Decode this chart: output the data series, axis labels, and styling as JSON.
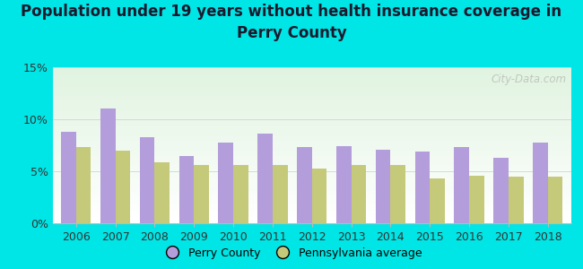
{
  "title_line1": "Population under 19 years without health insurance coverage in",
  "title_line2": "Perry County",
  "years": [
    2006,
    2007,
    2008,
    2009,
    2010,
    2011,
    2012,
    2013,
    2014,
    2015,
    2016,
    2017,
    2018
  ],
  "perry_county": [
    8.8,
    11.0,
    8.3,
    6.5,
    7.8,
    8.6,
    7.3,
    7.4,
    7.1,
    6.9,
    7.3,
    6.3,
    7.8
  ],
  "pa_average": [
    7.3,
    7.0,
    5.9,
    5.6,
    5.6,
    5.6,
    5.3,
    5.6,
    5.6,
    4.3,
    4.6,
    4.5,
    4.5
  ],
  "perry_color": "#b39ddb",
  "pa_color": "#c5c97a",
  "background_outer": "#00e5e5",
  "ylim": [
    0,
    15
  ],
  "yticks": [
    0,
    5,
    10,
    15
  ],
  "ytick_labels": [
    "0%",
    "5%",
    "10%",
    "15%"
  ],
  "legend_perry": "Perry County",
  "legend_pa": "Pennsylvania average",
  "watermark": "City-Data.com",
  "bar_width": 0.38,
  "title_fontsize": 12,
  "tick_fontsize": 9,
  "legend_fontsize": 9
}
